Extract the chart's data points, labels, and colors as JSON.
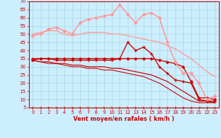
{
  "background_color": "#cceeff",
  "grid_color": "#aadddd",
  "xlabel": "Vent moyen/en rafales ( km/h )",
  "xlabel_color": "#cc0000",
  "tick_color": "#cc0000",
  "ylim": [
    5,
    70
  ],
  "yticks": [
    5,
    10,
    15,
    20,
    25,
    30,
    35,
    40,
    45,
    50,
    55,
    60,
    65,
    70
  ],
  "xlim": [
    -0.5,
    23.5
  ],
  "xticks": [
    0,
    1,
    2,
    3,
    4,
    5,
    6,
    7,
    8,
    9,
    10,
    11,
    12,
    13,
    14,
    15,
    16,
    17,
    18,
    19,
    20,
    21,
    22,
    23
  ],
  "lines": [
    {
      "x": [
        0,
        1,
        2,
        3,
        4,
        5,
        6,
        7,
        8,
        9,
        10,
        11,
        12,
        13,
        14,
        15,
        16,
        17,
        18,
        19,
        20,
        21,
        22,
        23
      ],
      "y": [
        34,
        35,
        35,
        35,
        35,
        35,
        35,
        35,
        35,
        35,
        35,
        35,
        35,
        35,
        35,
        35,
        34,
        33,
        32,
        30,
        21,
        11,
        11,
        10
      ],
      "color": "#cc0000",
      "lw": 1.0,
      "marker": "D",
      "ms": 1.8,
      "zorder": 4
    },
    {
      "x": [
        0,
        1,
        2,
        3,
        4,
        5,
        6,
        7,
        8,
        9,
        10,
        11,
        12,
        13,
        14,
        15,
        16,
        17,
        18,
        19,
        20,
        21,
        22,
        23
      ],
      "y": [
        34,
        33,
        33,
        32,
        32,
        31,
        31,
        30,
        30,
        30,
        29,
        29,
        28,
        27,
        26,
        25,
        23,
        21,
        18,
        15,
        12,
        9,
        9,
        8
      ],
      "color": "#cc0000",
      "lw": 0.9,
      "marker": null,
      "ms": 0,
      "zorder": 3
    },
    {
      "x": [
        0,
        1,
        2,
        3,
        4,
        5,
        6,
        7,
        8,
        9,
        10,
        11,
        12,
        13,
        14,
        15,
        16,
        17,
        18,
        19,
        20,
        21,
        22,
        23
      ],
      "y": [
        34,
        33,
        32,
        32,
        31,
        30,
        30,
        29,
        29,
        28,
        28,
        27,
        26,
        25,
        24,
        22,
        20,
        17,
        14,
        11,
        9,
        8,
        8,
        8
      ],
      "color": "#cc0000",
      "lw": 0.8,
      "marker": null,
      "ms": 0,
      "zorder": 3
    },
    {
      "x": [
        0,
        1,
        2,
        3,
        4,
        5,
        6,
        7,
        8,
        9,
        10,
        11,
        12,
        13,
        14,
        15,
        16,
        17,
        18,
        19,
        20,
        21,
        22,
        23
      ],
      "y": [
        35,
        35,
        35,
        34,
        34,
        34,
        34,
        34,
        34,
        34,
        34,
        35,
        45,
        40,
        42,
        38,
        30,
        26,
        22,
        21,
        20,
        10,
        9,
        9
      ],
      "color": "#cc0000",
      "lw": 1.0,
      "marker": "+",
      "ms": 3.5,
      "zorder": 4
    },
    {
      "x": [
        0,
        1,
        2,
        3,
        4,
        5,
        6,
        7,
        8,
        9,
        10,
        11,
        12,
        13,
        14,
        15,
        16,
        17,
        18,
        19,
        20,
        21,
        22,
        23
      ],
      "y": [
        49,
        50,
        53,
        54,
        52,
        50,
        57,
        59,
        60,
        61,
        62,
        68,
        62,
        57,
        62,
        63,
        60,
        45,
        33,
        26,
        26,
        20,
        10,
        12
      ],
      "color": "#ff9999",
      "lw": 1.2,
      "marker": "D",
      "ms": 2.0,
      "zorder": 4
    },
    {
      "x": [
        0,
        1,
        2,
        3,
        4,
        5,
        6,
        7,
        8,
        9,
        10,
        11,
        12,
        13,
        14,
        15,
        16,
        17,
        18,
        19,
        20,
        21,
        22,
        23
      ],
      "y": [
        50,
        51,
        52,
        52,
        50,
        49,
        50,
        51,
        51,
        51,
        50,
        50,
        49,
        48,
        47,
        46,
        45,
        43,
        41,
        38,
        35,
        31,
        27,
        24
      ],
      "color": "#ff9999",
      "lw": 1.0,
      "marker": null,
      "ms": 0,
      "zorder": 3
    }
  ],
  "axis_fontsize": 6,
  "tick_fontsize": 5
}
